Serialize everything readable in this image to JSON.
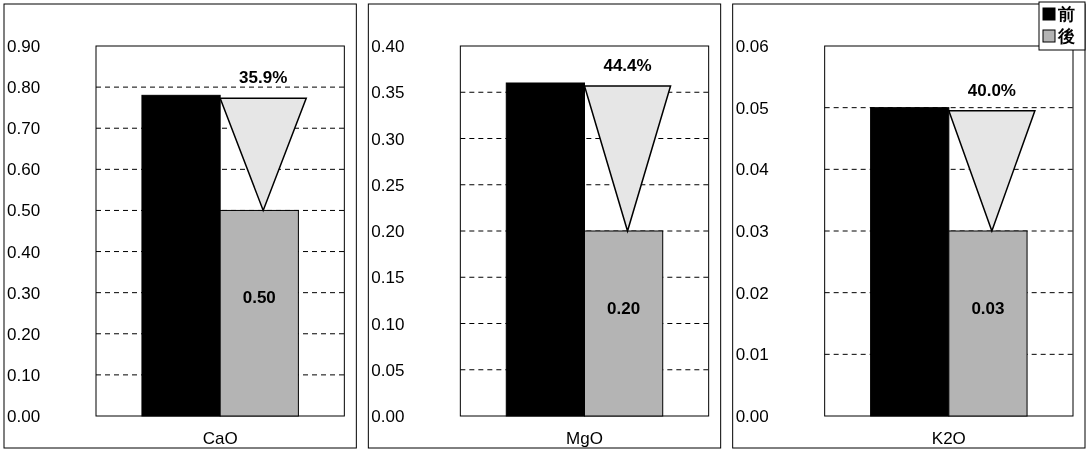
{
  "chart_data": [
    {
      "type": "bar",
      "categories": [
        "CaO"
      ],
      "series": [
        {
          "color": "#000000",
          "values": [
            0.78
          ]
        },
        {
          "color": "#b4b4b4",
          "values": [
            0.5
          ],
          "value_labels": [
            "0.50"
          ]
        }
      ],
      "ylim": [
        0,
        0.9
      ],
      "yticks": [
        {
          "value": 0,
          "label": "0.00"
        },
        {
          "value": 0.1,
          "label": "0.10"
        },
        {
          "value": 0.2,
          "label": "0.20"
        },
        {
          "value": 0.3,
          "label": "0.30"
        },
        {
          "value": 0.4,
          "label": "0.40"
        },
        {
          "value": 0.5,
          "label": "0.50"
        },
        {
          "value": 0.6,
          "label": "0.60"
        },
        {
          "value": 0.7,
          "label": "0.70"
        },
        {
          "value": 0.8,
          "label": "0.80"
        },
        {
          "value": 0.9,
          "label": "0.90"
        }
      ],
      "grid": "y",
      "annotations": [
        "35.9%"
      ]
    },
    {
      "type": "bar",
      "categories": [
        "MgO"
      ],
      "series": [
        {
          "color": "#000000",
          "values": [
            0.36
          ]
        },
        {
          "color": "#b4b4b4",
          "values": [
            0.2
          ],
          "value_labels": [
            "0.20"
          ]
        }
      ],
      "ylim": [
        0,
        0.4
      ],
      "yticks": [
        {
          "value": 0,
          "label": "0.00"
        },
        {
          "value": 0.05,
          "label": "0.05"
        },
        {
          "value": 0.1,
          "label": "0.10"
        },
        {
          "value": 0.15,
          "label": "0.15"
        },
        {
          "value": 0.2,
          "label": "0.20"
        },
        {
          "value": 0.25,
          "label": "0.25"
        },
        {
          "value": 0.3,
          "label": "0.30"
        },
        {
          "value": 0.35,
          "label": "0.35"
        },
        {
          "value": 0.4,
          "label": "0.40"
        }
      ],
      "grid": "y",
      "annotations": [
        "44.4%"
      ]
    },
    {
      "type": "bar",
      "categories": [
        "K2O"
      ],
      "series": [
        {
          "name": "前",
          "color": "#000000",
          "values": [
            0.05
          ]
        },
        {
          "name": "後",
          "color": "#b4b4b4",
          "values": [
            0.03
          ],
          "value_labels": [
            "0.03"
          ]
        }
      ],
      "ylim": [
        0,
        0.06
      ],
      "yticks": [
        {
          "value": 0,
          "label": "0.00"
        },
        {
          "value": 0.01,
          "label": "0.01"
        },
        {
          "value": 0.02,
          "label": "0.02"
        },
        {
          "value": 0.03,
          "label": "0.03"
        },
        {
          "value": 0.04,
          "label": "0.04"
        },
        {
          "value": 0.05,
          "label": "0.05"
        },
        {
          "value": 0.06,
          "label": "0.06"
        }
      ],
      "grid": "y",
      "legend": "top right",
      "annotations": [
        "40.0%"
      ]
    }
  ]
}
